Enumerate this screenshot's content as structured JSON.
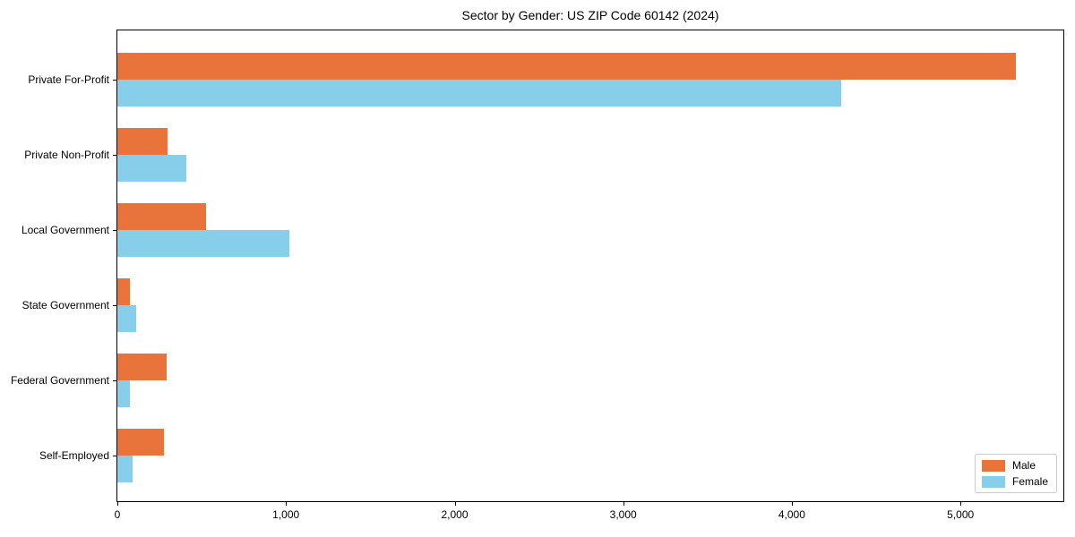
{
  "chart_data": {
    "type": "bar",
    "orientation": "horizontal",
    "title": "Sector by Gender: US ZIP Code 60142 (2024)",
    "categories": [
      "Private For-Profit",
      "Private Non-Profit",
      "Local Government",
      "State Government",
      "Federal Government",
      "Self-Employed"
    ],
    "series": [
      {
        "name": "Male",
        "color": "#e8743b",
        "values": [
          5330,
          295,
          525,
          75,
          290,
          275
        ]
      },
      {
        "name": "Female",
        "color": "#87ceeb",
        "values": [
          4290,
          410,
          1020,
          110,
          75,
          90
        ]
      }
    ],
    "xlabel": "",
    "ylabel": "",
    "xlim": [
      0,
      5610
    ],
    "xticks": [
      0,
      1000,
      2000,
      3000,
      4000,
      5000
    ],
    "xtick_labels": [
      "0",
      "1,000",
      "2,000",
      "3,000",
      "4,000",
      "5,000"
    ],
    "grid": false,
    "legend_position": "lower right",
    "colors": {
      "male": "#e8743b",
      "female": "#87ceeb",
      "spine": "#000000",
      "legend_border": "#cccccc"
    }
  }
}
